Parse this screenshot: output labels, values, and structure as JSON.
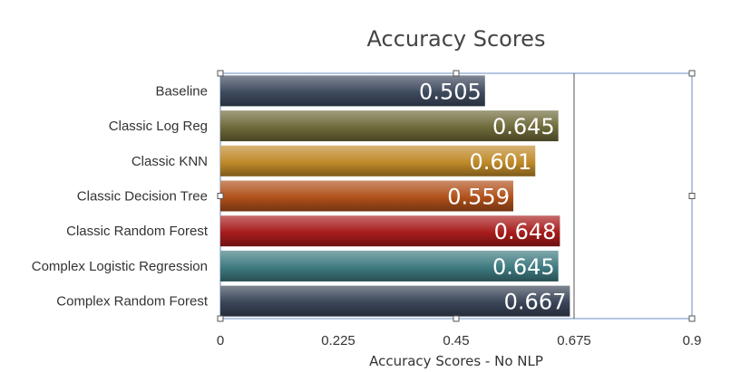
{
  "chart_data": {
    "type": "bar",
    "orientation": "horizontal",
    "title": "Accuracy Scores",
    "xlabel": "Accuracy Scores -  No NLP",
    "ylabel": "",
    "xlim": [
      0,
      0.9
    ],
    "xticks": [
      "0",
      "0.225",
      "0.45",
      "0.675",
      "0.9"
    ],
    "categories": [
      "Baseline",
      "Classic Log Reg",
      "Classic KNN",
      "Classic Decision Tree",
      "Classic Random Forest",
      "Complex Logistic Regression",
      "Complex Random Forest"
    ],
    "values": [
      0.505,
      0.645,
      0.601,
      0.559,
      0.648,
      0.645,
      0.667
    ],
    "value_labels": [
      "0.505",
      "0.645",
      "0.601",
      "0.559",
      "0.648",
      "0.645",
      "0.667"
    ],
    "colors": [
      "#3e4a5e",
      "#6e6a3a",
      "#c08a2a",
      "#b0501a",
      "#a81c1c",
      "#3e7a80",
      "#3a4558"
    ],
    "grid": false,
    "legend": "none"
  }
}
